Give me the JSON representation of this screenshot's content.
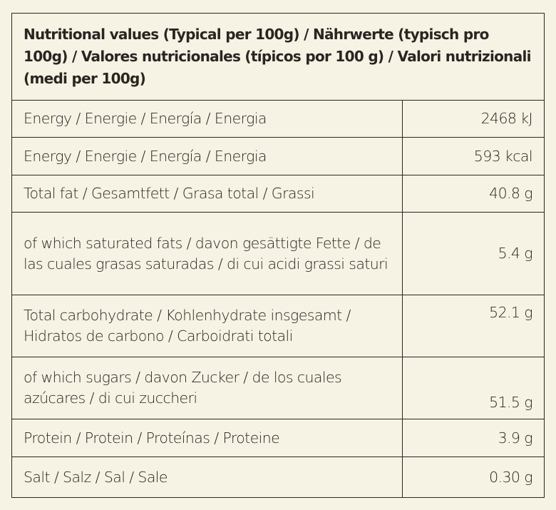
{
  "header": "Nutritional values (Typical per 100g) / Nährwerte (typisch pro 100g) / Valores nutricionales (típicos por 100 g) / Valori nutrizionali (medi per 100g)",
  "rows": [
    {
      "label": "Energy / Energie / Energía / Energia",
      "value": "2468 kJ"
    },
    {
      "label": "Energy / Energie / Energía / Energia",
      "value": "593 kcal"
    },
    {
      "label": "Total fat / Gesamtfett / Grasa total / Grassi",
      "value": "40.8 g"
    },
    {
      "label": "of which saturated fats /  davon gesättigte Fette / de las cuales grasas saturadas / di cui acidi grassi saturi",
      "value": "5.4 g"
    },
    {
      "label": "Total carbohydrate / Kohlenhydrate insgesamt / Hidratos de carbono / Carboidrati totali",
      "value": "52.1 g"
    },
    {
      "label": "of which sugars / davon Zucker / de los cuales azúcares / di cui zuccheri",
      "value": "51.5 g"
    },
    {
      "label": "Protein / Protein / Proteínas / Proteine",
      "value": "3.9 g"
    },
    {
      "label": "Salt / Salz / Sal / Sale",
      "value": "0.30 g"
    }
  ]
}
